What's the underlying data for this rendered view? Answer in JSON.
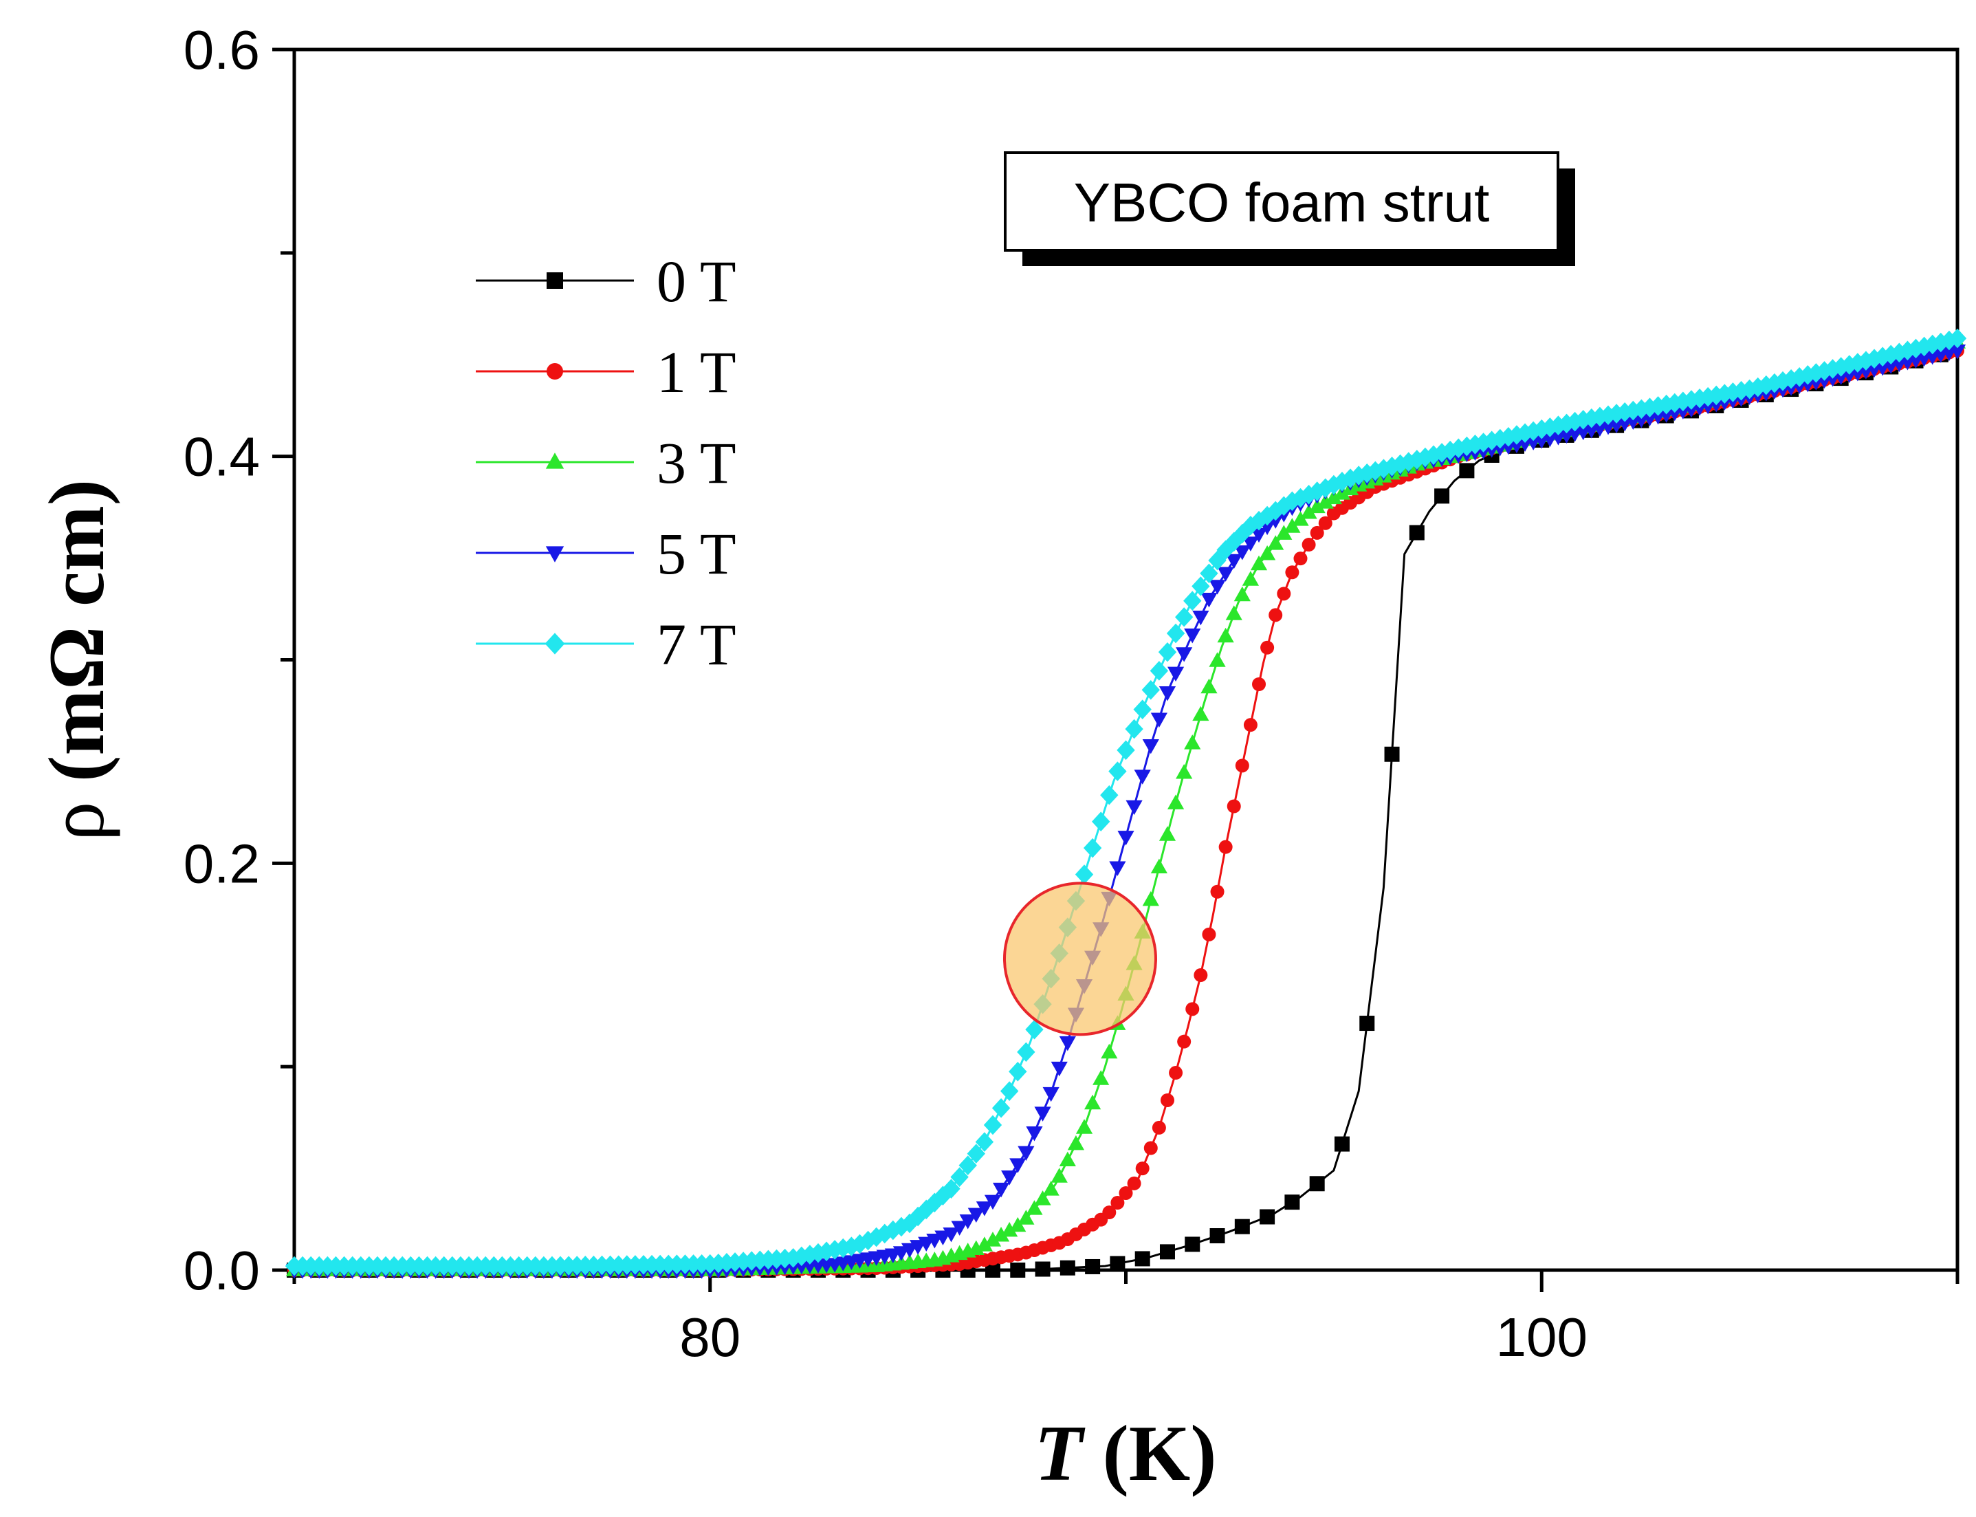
{
  "chart_data": {
    "type": "scatter",
    "title": "",
    "xlabel": "K",
    "xlabel_symbol": "T",
    "ylabel": "mΩ cm",
    "ylabel_symbol": "ρ",
    "xlim": [
      70,
      110
    ],
    "ylim": [
      0,
      0.6
    ],
    "x_ticks": [
      80,
      100
    ],
    "x_tick_labels": [
      "80",
      "100"
    ],
    "y_ticks": [
      0.0,
      0.2,
      0.4,
      0.6
    ],
    "y_tick_labels": [
      "0.0",
      "0.2",
      "0.4",
      "0.6"
    ],
    "grid": false,
    "legend_position": "upper-left",
    "annotation": "YBCO foam strut",
    "highlight_circle": {
      "x": 88.9,
      "y": 0.153,
      "fill": "#f9c66c",
      "stroke": "#e8262b"
    },
    "series": [
      {
        "name": "0 T",
        "color": "#000000",
        "marker": "square",
        "points": [
          [
            70,
            0
          ],
          [
            80,
            0
          ],
          [
            86,
            0
          ],
          [
            87.5,
            0
          ],
          [
            88.5,
            0.001
          ],
          [
            89.5,
            0.002
          ],
          [
            90.5,
            0.006
          ],
          [
            91.5,
            0.012
          ],
          [
            92.5,
            0.019
          ],
          [
            93.5,
            0.027
          ],
          [
            94.2,
            0.036
          ],
          [
            95,
            0.049
          ],
          [
            95.6,
            0.088
          ],
          [
            96.2,
            0.188
          ],
          [
            96.7,
            0.352
          ],
          [
            97.3,
            0.373
          ],
          [
            97.9,
            0.388
          ],
          [
            98.5,
            0.398
          ],
          [
            99.2,
            0.404
          ],
          [
            100,
            0.408
          ],
          [
            102,
            0.416
          ],
          [
            104,
            0.424
          ],
          [
            106,
            0.433
          ],
          [
            108,
            0.442
          ],
          [
            110,
            0.452
          ]
        ]
      },
      {
        "name": "1 T",
        "color": "#ee1111",
        "marker": "circle",
        "points": [
          [
            70,
            0
          ],
          [
            80,
            0
          ],
          [
            84,
            0.001
          ],
          [
            86,
            0.003
          ],
          [
            87.5,
            0.008
          ],
          [
            88.5,
            0.014
          ],
          [
            89.5,
            0.026
          ],
          [
            90.3,
            0.045
          ],
          [
            90.8,
            0.07
          ],
          [
            91.2,
            0.097
          ],
          [
            91.5,
            0.12
          ],
          [
            91.8,
            0.145
          ],
          [
            92.1,
            0.175
          ],
          [
            92.4,
            0.208
          ],
          [
            92.7,
            0.238
          ],
          [
            93,
            0.268
          ],
          [
            93.3,
            0.298
          ],
          [
            93.6,
            0.322
          ],
          [
            94,
            0.343
          ],
          [
            94.5,
            0.36
          ],
          [
            95,
            0.372
          ],
          [
            96,
            0.385
          ],
          [
            98,
            0.4
          ],
          [
            100,
            0.41
          ],
          [
            104,
            0.425
          ],
          [
            110,
            0.452
          ]
        ]
      },
      {
        "name": "3 T",
        "color": "#2be62b",
        "marker": "triangle-up",
        "points": [
          [
            70,
            0
          ],
          [
            80,
            0
          ],
          [
            84,
            0.002
          ],
          [
            85.5,
            0.005
          ],
          [
            86.5,
            0.011
          ],
          [
            87.5,
            0.023
          ],
          [
            88.3,
            0.042
          ],
          [
            89,
            0.07
          ],
          [
            89.5,
            0.1
          ],
          [
            89.9,
            0.128
          ],
          [
            90.3,
            0.158
          ],
          [
            90.7,
            0.19
          ],
          [
            91.1,
            0.222
          ],
          [
            91.5,
            0.252
          ],
          [
            91.9,
            0.28
          ],
          [
            92.3,
            0.306
          ],
          [
            92.7,
            0.328
          ],
          [
            93.2,
            0.347
          ],
          [
            93.8,
            0.362
          ],
          [
            94.5,
            0.374
          ],
          [
            95.5,
            0.385
          ],
          [
            97,
            0.396
          ],
          [
            100,
            0.41
          ],
          [
            104,
            0.427
          ],
          [
            110,
            0.456
          ]
        ]
      },
      {
        "name": "5 T",
        "color": "#1818e6",
        "marker": "triangle-down",
        "points": [
          [
            70,
            0
          ],
          [
            80,
            0
          ],
          [
            83,
            0.003
          ],
          [
            84.5,
            0.008
          ],
          [
            85.8,
            0.018
          ],
          [
            86.8,
            0.034
          ],
          [
            87.6,
            0.058
          ],
          [
            88.2,
            0.087
          ],
          [
            88.6,
            0.112
          ],
          [
            89,
            0.14
          ],
          [
            89.4,
            0.168
          ],
          [
            89.8,
            0.198
          ],
          [
            90.2,
            0.228
          ],
          [
            90.6,
            0.258
          ],
          [
            91,
            0.284
          ],
          [
            91.5,
            0.308
          ],
          [
            92,
            0.33
          ],
          [
            92.6,
            0.349
          ],
          [
            93.3,
            0.364
          ],
          [
            94,
            0.375
          ],
          [
            95,
            0.385
          ],
          [
            97,
            0.397
          ],
          [
            100,
            0.408
          ],
          [
            104,
            0.425
          ],
          [
            110,
            0.452
          ]
        ]
      },
      {
        "name": "7 T",
        "color": "#22e6ee",
        "marker": "diamond",
        "points": [
          [
            70,
            0.002
          ],
          [
            76,
            0.002
          ],
          [
            80,
            0.003
          ],
          [
            82,
            0.006
          ],
          [
            83.5,
            0.012
          ],
          [
            84.8,
            0.023
          ],
          [
            85.8,
            0.04
          ],
          [
            86.6,
            0.063
          ],
          [
            87.2,
            0.088
          ],
          [
            87.7,
            0.112
          ],
          [
            88.1,
            0.137
          ],
          [
            88.5,
            0.162
          ],
          [
            88.9,
            0.188
          ],
          [
            89.3,
            0.214
          ],
          [
            89.7,
            0.24
          ],
          [
            90.2,
            0.266
          ],
          [
            90.7,
            0.29
          ],
          [
            91.2,
            0.313
          ],
          [
            91.7,
            0.333
          ],
          [
            92.3,
            0.352
          ],
          [
            93,
            0.366
          ],
          [
            94,
            0.378
          ],
          [
            95.5,
            0.39
          ],
          [
            98,
            0.404
          ],
          [
            101,
            0.418
          ],
          [
            105,
            0.433
          ],
          [
            110,
            0.458
          ]
        ]
      }
    ]
  }
}
